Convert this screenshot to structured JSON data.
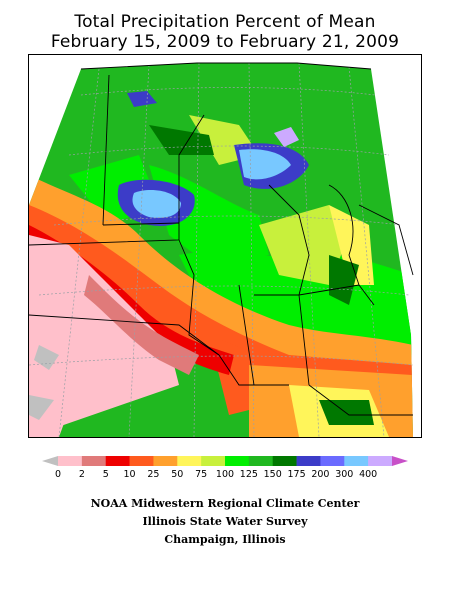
{
  "title": {
    "line1": "Total Precipitation Percent of Mean",
    "line2": "February 15, 2009 to February 21, 2009"
  },
  "legend": {
    "bins": [
      {
        "color": "#c0c0c0"
      },
      {
        "color": "#ffc0cb"
      },
      {
        "color": "#e07a7a"
      },
      {
        "color": "#ee0000"
      },
      {
        "color": "#ff5a1e"
      },
      {
        "color": "#ffa02d"
      },
      {
        "color": "#fff55a"
      },
      {
        "color": "#c8f03c"
      },
      {
        "color": "#00ee00"
      },
      {
        "color": "#20b820"
      },
      {
        "color": "#007800"
      },
      {
        "color": "#3c3cc8"
      },
      {
        "color": "#6b6bff"
      },
      {
        "color": "#78c8ff"
      },
      {
        "color": "#ccaaff"
      },
      {
        "color": "#c850c8"
      }
    ],
    "labels": [
      "0",
      "2",
      "5",
      "10",
      "25",
      "50",
      "75",
      "100",
      "125",
      "150",
      "175",
      "200",
      "300",
      "400"
    ]
  },
  "credits": {
    "line1": "NOAA Midwestern Regional Climate Center",
    "line2": "Illinois State Water Survey",
    "line3": "Champaign, Illinois"
  }
}
